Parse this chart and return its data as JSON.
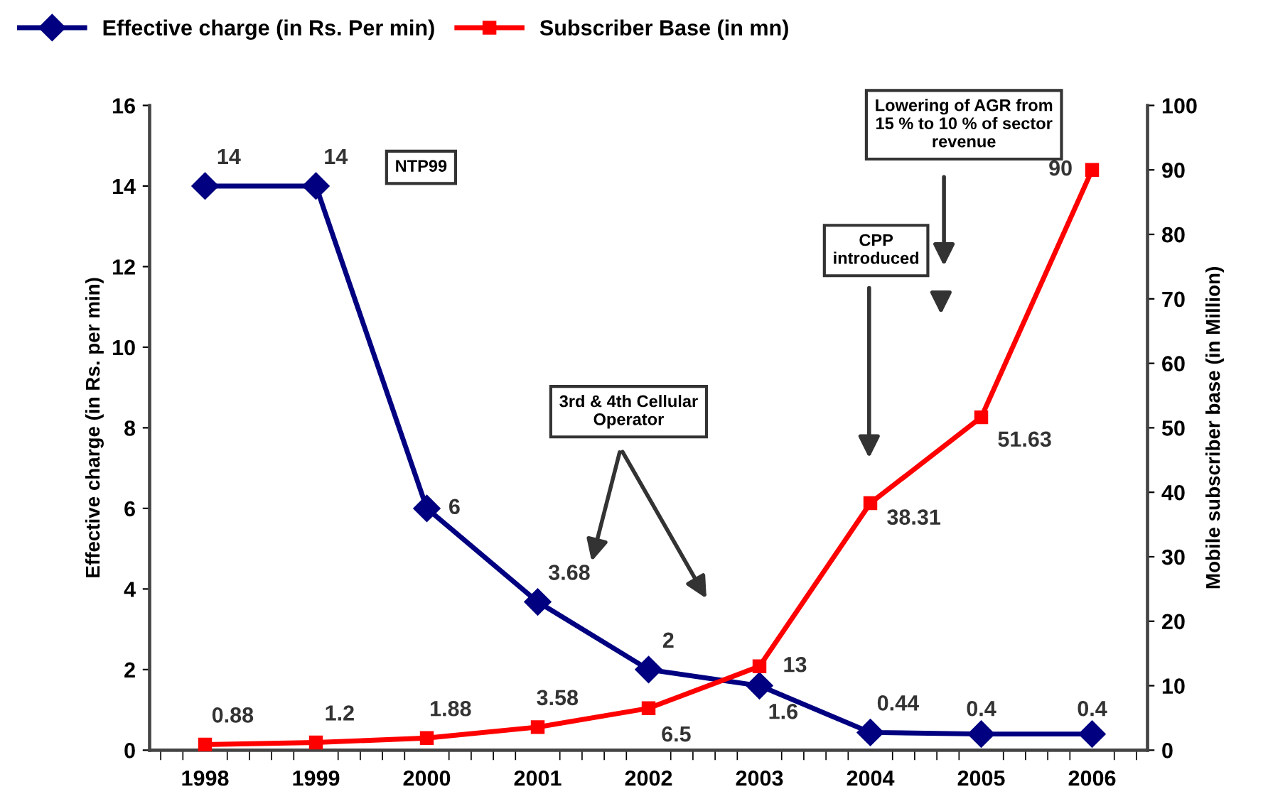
{
  "chart_data": {
    "type": "line",
    "categories": [
      "1998",
      "1999",
      "2000",
      "2001",
      "2002",
      "2003",
      "2004",
      "2005",
      "2006"
    ],
    "ylabel": "Effective charge (in Rs. per min)",
    "y2label": "Mobile subscriber base (in Million)",
    "series": [
      {
        "name": "Effective charge (in Rs. Per min)",
        "color": "#000080",
        "marker": "diamond",
        "values": [
          14,
          14,
          6,
          3.68,
          2,
          1.6,
          0.44,
          0.4,
          0.4
        ],
        "value_labels": [
          "14",
          "14",
          "6",
          "3.68",
          "2",
          "1.6",
          "0.44",
          "0.4",
          "0.4"
        ]
      },
      {
        "name": "Subscriber Base (in mn)",
        "color": "#ff0000",
        "marker": "square",
        "axis": "y2",
        "values": [
          0.88,
          1.2,
          1.88,
          3.58,
          6.5,
          13,
          38.31,
          51.63,
          90
        ],
        "value_labels": [
          "0.88",
          "1.2",
          "1.88",
          "3.58",
          "6.5",
          "13",
          "38.31",
          "51.63",
          "90"
        ]
      }
    ],
    "ylim": [
      0,
      16
    ],
    "yticks": [
      0,
      2,
      4,
      6,
      8,
      10,
      12,
      14,
      16
    ],
    "y2lim": [
      0,
      100
    ],
    "y2ticks": [
      0,
      10,
      20,
      30,
      40,
      50,
      60,
      70,
      80,
      90,
      100
    ],
    "grid": false,
    "legend": "top left",
    "line_style": "solid",
    "annotations": [
      "NTP99",
      "3rd & 4th Cellular\nOperator",
      "CPP\nintroduced",
      "Lowering of AGR from\n15 % to 10 % of sector\nrevenue"
    ]
  }
}
